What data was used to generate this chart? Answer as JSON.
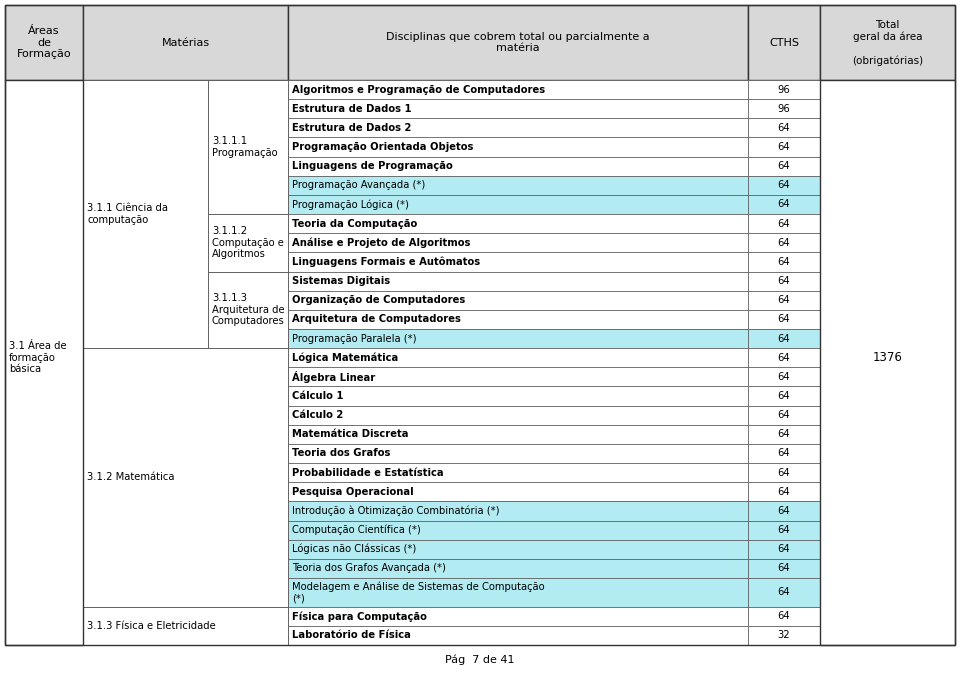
{
  "header": {
    "col1": "Áreas\nde\nFormação",
    "col2": "Matérias",
    "col3": "Disciplinas que cobrem total ou parcialmente a\nmatéria",
    "col4": "CTHS",
    "col5": "Total\ngeral da área\n\n(obrigatórias)"
  },
  "rows": [
    {
      "col3": "Algoritmos e Programação de Computadores",
      "col4": "96",
      "bold": true,
      "bg": "white"
    },
    {
      "col3": "Estrutura de Dados 1",
      "col4": "96",
      "bold": true,
      "bg": "white"
    },
    {
      "col3": "Estrutura de Dados 2",
      "col4": "64",
      "bold": true,
      "bg": "white"
    },
    {
      "col3": "Programação Orientada Objetos",
      "col4": "64",
      "bold": true,
      "bg": "white"
    },
    {
      "col3": "Linguagens de Programação",
      "col4": "64",
      "bold": true,
      "bg": "white"
    },
    {
      "col3": "Programação Avançada (*)",
      "col4": "64",
      "bold": false,
      "bg": "#b2ebf2"
    },
    {
      "col3": "Programação Lógica (*)",
      "col4": "64",
      "bold": false,
      "bg": "#b2ebf2"
    },
    {
      "col3": "Teoria da Computação",
      "col4": "64",
      "bold": true,
      "bg": "white"
    },
    {
      "col3": "Análise e Projeto de Algoritmos",
      "col4": "64",
      "bold": true,
      "bg": "white"
    },
    {
      "col3": "Linguagens Formais e Autômatos",
      "col4": "64",
      "bold": true,
      "bg": "white"
    },
    {
      "col3": "Sistemas Digitais",
      "col4": "64",
      "bold": true,
      "bg": "white"
    },
    {
      "col3": "Organização de Computadores",
      "col4": "64",
      "bold": true,
      "bg": "white"
    },
    {
      "col3": "Arquitetura de Computadores",
      "col4": "64",
      "bold": true,
      "bg": "white"
    },
    {
      "col3": "Programação Paralela (*)",
      "col4": "64",
      "bold": false,
      "bg": "#b2ebf2"
    },
    {
      "col3": "Lógica Matemática",
      "col4": "64",
      "bold": true,
      "bg": "white"
    },
    {
      "col3": "Álgebra Linear",
      "col4": "64",
      "bold": true,
      "bg": "white"
    },
    {
      "col3": "Cálculo 1",
      "col4": "64",
      "bold": true,
      "bg": "white"
    },
    {
      "col3": "Cálculo 2",
      "col4": "64",
      "bold": true,
      "bg": "white"
    },
    {
      "col3": "Matemática Discreta",
      "col4": "64",
      "bold": true,
      "bg": "white"
    },
    {
      "col3": "Teoria dos Grafos",
      "col4": "64",
      "bold": true,
      "bg": "white"
    },
    {
      "col3": "Probabilidade e Estatística",
      "col4": "64",
      "bold": true,
      "bg": "white"
    },
    {
      "col3": "Pesquisa Operacional",
      "col4": "64",
      "bold": true,
      "bg": "white"
    },
    {
      "col3": "Introdução à Otimização Combinatória (*)",
      "col4": "64",
      "bold": false,
      "bg": "#b2ebf2"
    },
    {
      "col3": "Computação Científica (*)",
      "col4": "64",
      "bold": false,
      "bg": "#b2ebf2"
    },
    {
      "col3": "Lógicas não Clássicas (*)",
      "col4": "64",
      "bold": false,
      "bg": "#b2ebf2"
    },
    {
      "col3": "Teoria dos Grafos Avançada (*)",
      "col4": "64",
      "bold": false,
      "bg": "#b2ebf2"
    },
    {
      "col3": "Modelagem e Análise de Sistemas de Computação\n(*)",
      "col4": "64",
      "bold": false,
      "bg": "#b2ebf2"
    },
    {
      "col3": "Física para Computação",
      "col4": "64",
      "bold": true,
      "bg": "white"
    },
    {
      "col3": "Laboratório de Física",
      "col4": "32",
      "bold": true,
      "bg": "white"
    }
  ],
  "total_value": "1376",
  "footer_text": "Pág  7 de 41",
  "header_bg": "#d8d8d8",
  "border_color": "#555555",
  "cyan_bg": "#b2ebf2",
  "font_size_data": 7.2,
  "font_size_header": 8.0
}
